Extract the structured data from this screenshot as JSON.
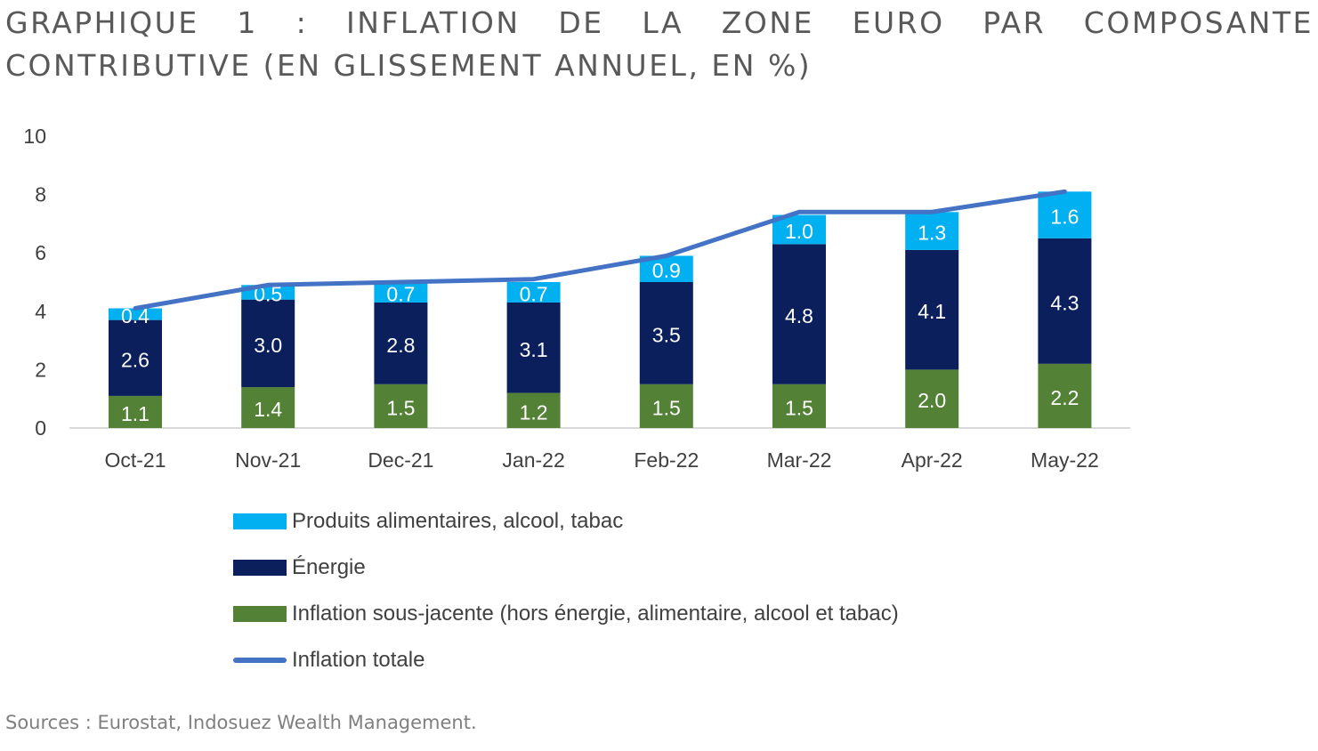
{
  "title": "GRAPHIQUE 1 : INFLATION DE LA ZONE EURO PAR COMPOSANTE CONTRIBUTIVE (EN GLISSEMENT ANNUEL, EN %)",
  "source": "Sources : Eurostat, Indosuez Wealth Management.",
  "chart_data": {
    "type": "bar",
    "stacked": true,
    "categories": [
      "Oct-21",
      "Nov-21",
      "Dec-21",
      "Jan-22",
      "Feb-22",
      "Mar-22",
      "Apr-22",
      "May-22"
    ],
    "ylim": [
      0,
      10
    ],
    "yticks": [
      0,
      2,
      4,
      6,
      8,
      10
    ],
    "grid": false,
    "legend_position": "bottom",
    "series": [
      {
        "name": "Inflation sous-jacente (hors énergie, alimentaire, alcool et tabac)",
        "type": "bar",
        "color": "#538135",
        "values": [
          1.1,
          1.4,
          1.5,
          1.2,
          1.5,
          1.5,
          2.0,
          2.2
        ]
      },
      {
        "name": "Énergie",
        "type": "bar",
        "color": "#0b1f5c",
        "values": [
          2.6,
          3.0,
          2.8,
          3.1,
          3.5,
          4.8,
          4.1,
          4.3
        ]
      },
      {
        "name": "Produits alimentaires, alcool, tabac",
        "type": "bar",
        "color": "#00b0f0",
        "values": [
          0.4,
          0.5,
          0.7,
          0.7,
          0.9,
          1.0,
          1.3,
          1.6
        ]
      },
      {
        "name": "Inflation totale",
        "type": "line",
        "color": "#4472c4",
        "values": [
          4.1,
          4.9,
          5.0,
          5.1,
          5.9,
          7.4,
          7.4,
          8.1
        ]
      }
    ],
    "legend_order": [
      2,
      1,
      0,
      3
    ]
  }
}
